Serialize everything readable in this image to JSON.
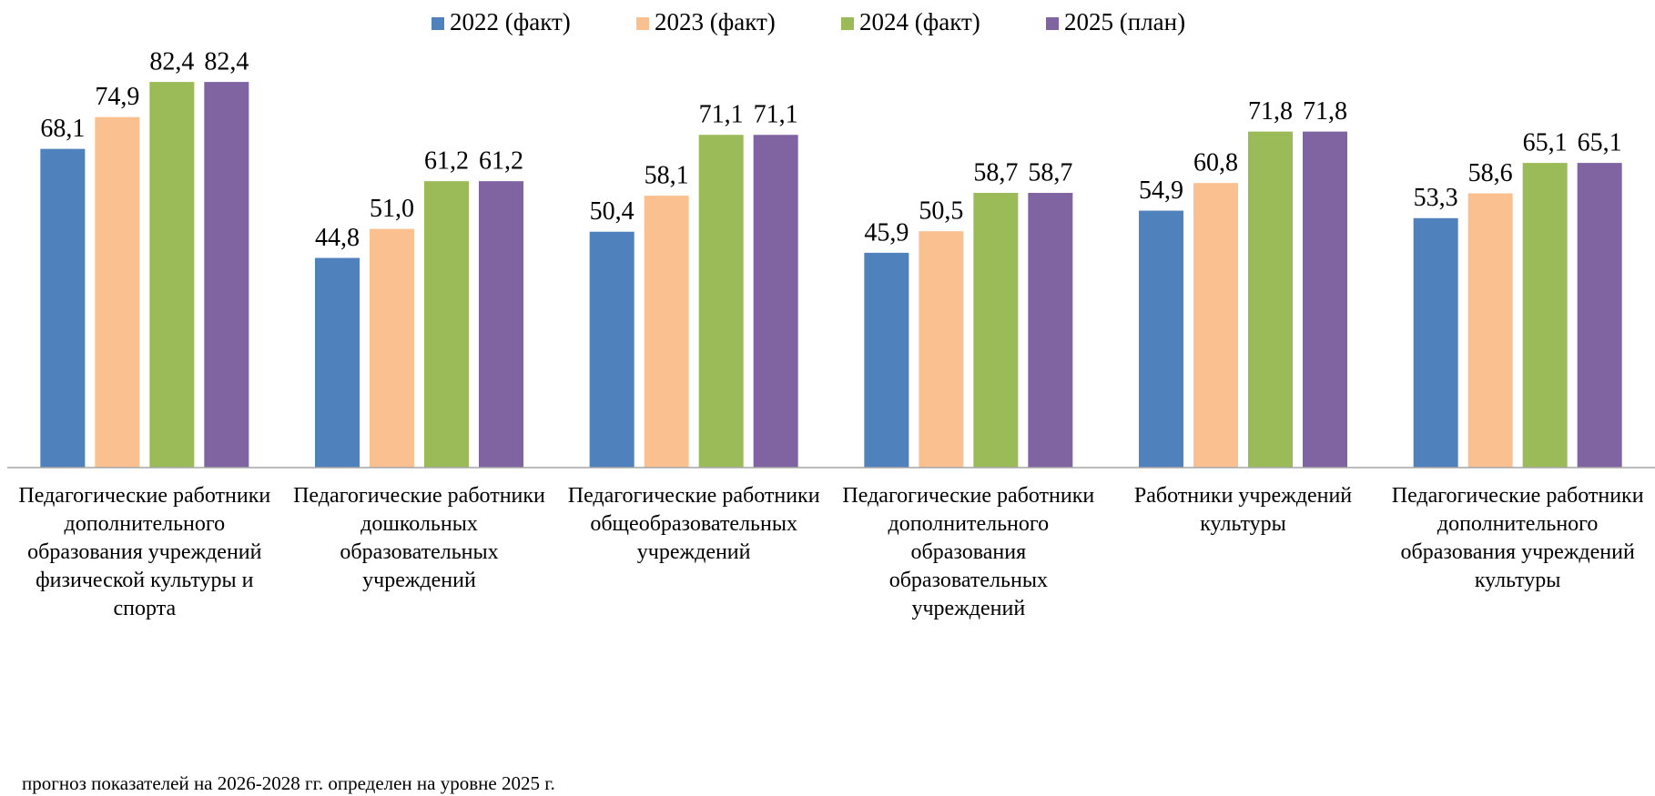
{
  "chart_data": {
    "type": "bar",
    "categories": [
      "Педагогические работники дополнительного образования учреждений физической культуры и спорта",
      "Педагогические работники дошкольных образовательных учреждений",
      "Педагогические работники общеобразовательных учреждений",
      "Педагогические работники дополнительного образования образовательных учреждений",
      "Работники учреждений культуры",
      "Педагогические работники дополнительного образования учреждений культуры"
    ],
    "series": [
      {
        "name": "2022 (факт)",
        "color": "#4f81bd",
        "values": [
          68.1,
          44.8,
          50.4,
          45.9,
          54.9,
          53.3
        ],
        "value_labels": [
          "68,1",
          "44,8",
          "50,4",
          "45,9",
          "54,9",
          "53,3"
        ]
      },
      {
        "name": "2023 (факт)",
        "color": "#fac090",
        "values": [
          74.9,
          51.0,
          58.1,
          50.5,
          60.8,
          58.6
        ],
        "value_labels": [
          "74,9",
          "51,0",
          "58,1",
          "50,5",
          "60,8",
          "58,6"
        ]
      },
      {
        "name": "2024 (факт)",
        "color": "#9bbb59",
        "values": [
          82.4,
          61.2,
          71.1,
          58.7,
          71.8,
          65.1
        ],
        "value_labels": [
          "82,4",
          "61,2",
          "71,1",
          "58,7",
          "71,8",
          "65,1"
        ]
      },
      {
        "name": "2025 (план)",
        "color": "#8064a2",
        "values": [
          82.4,
          61.2,
          71.1,
          58.7,
          71.8,
          65.1
        ],
        "value_labels": [
          "82,4",
          "61,2",
          "71,1",
          "58,7",
          "71,8",
          "65,1"
        ]
      }
    ],
    "ylim": [
      0,
      90
    ],
    "legend": "top",
    "note": "прогноз показателей на 2026-2028 гг. определен на уровне 2025 г."
  }
}
